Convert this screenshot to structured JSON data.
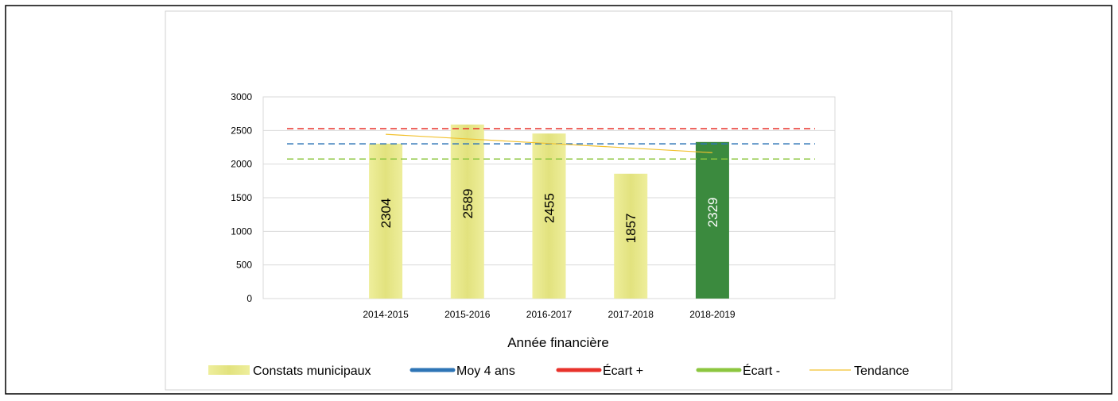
{
  "chart_data": {
    "type": "bar",
    "x_label": "Année financière",
    "categories": [
      null,
      "2014-2015",
      "2015-2016",
      "2016-2017",
      "2017-2018",
      "2018-2019",
      null
    ],
    "series": [
      {
        "name": "Constats municipaux",
        "type": "bar",
        "color": "#e2e27e",
        "colors": [
          null,
          "#e2e27e",
          "#e2e27e",
          "#e2e27e",
          "#e2e27e",
          "#3b8a3e",
          null
        ],
        "values": [
          null,
          2304,
          2589,
          2455,
          1857,
          2329,
          null
        ]
      },
      {
        "name": "Moy 4 ans",
        "type": "line",
        "color": "#2e75b6",
        "dashed": true,
        "values": [
          2301,
          2301,
          2301,
          2301,
          2301,
          2301,
          2301
        ]
      },
      {
        "name": "Écart +",
        "type": "line",
        "color": "#e8322b",
        "dashed": true,
        "values": [
          2527,
          2527,
          2527,
          2527,
          2527,
          2527,
          2527
        ]
      },
      {
        "name": "Écart -",
        "type": "line",
        "color": "#8cc63f",
        "dashed": true,
        "values": [
          2076,
          2076,
          2076,
          2076,
          2076,
          2076,
          2076
        ]
      },
      {
        "name": "Tendance",
        "type": "line",
        "color": "#f2c12e",
        "dashed": false,
        "values": [
          null,
          2443,
          2375,
          2307,
          2239,
          2170,
          null
        ]
      }
    ],
    "ylim": [
      0,
      3000
    ],
    "yticks": [
      0,
      500,
      1000,
      1500,
      2000,
      2500,
      3000
    ],
    "grid": true
  }
}
